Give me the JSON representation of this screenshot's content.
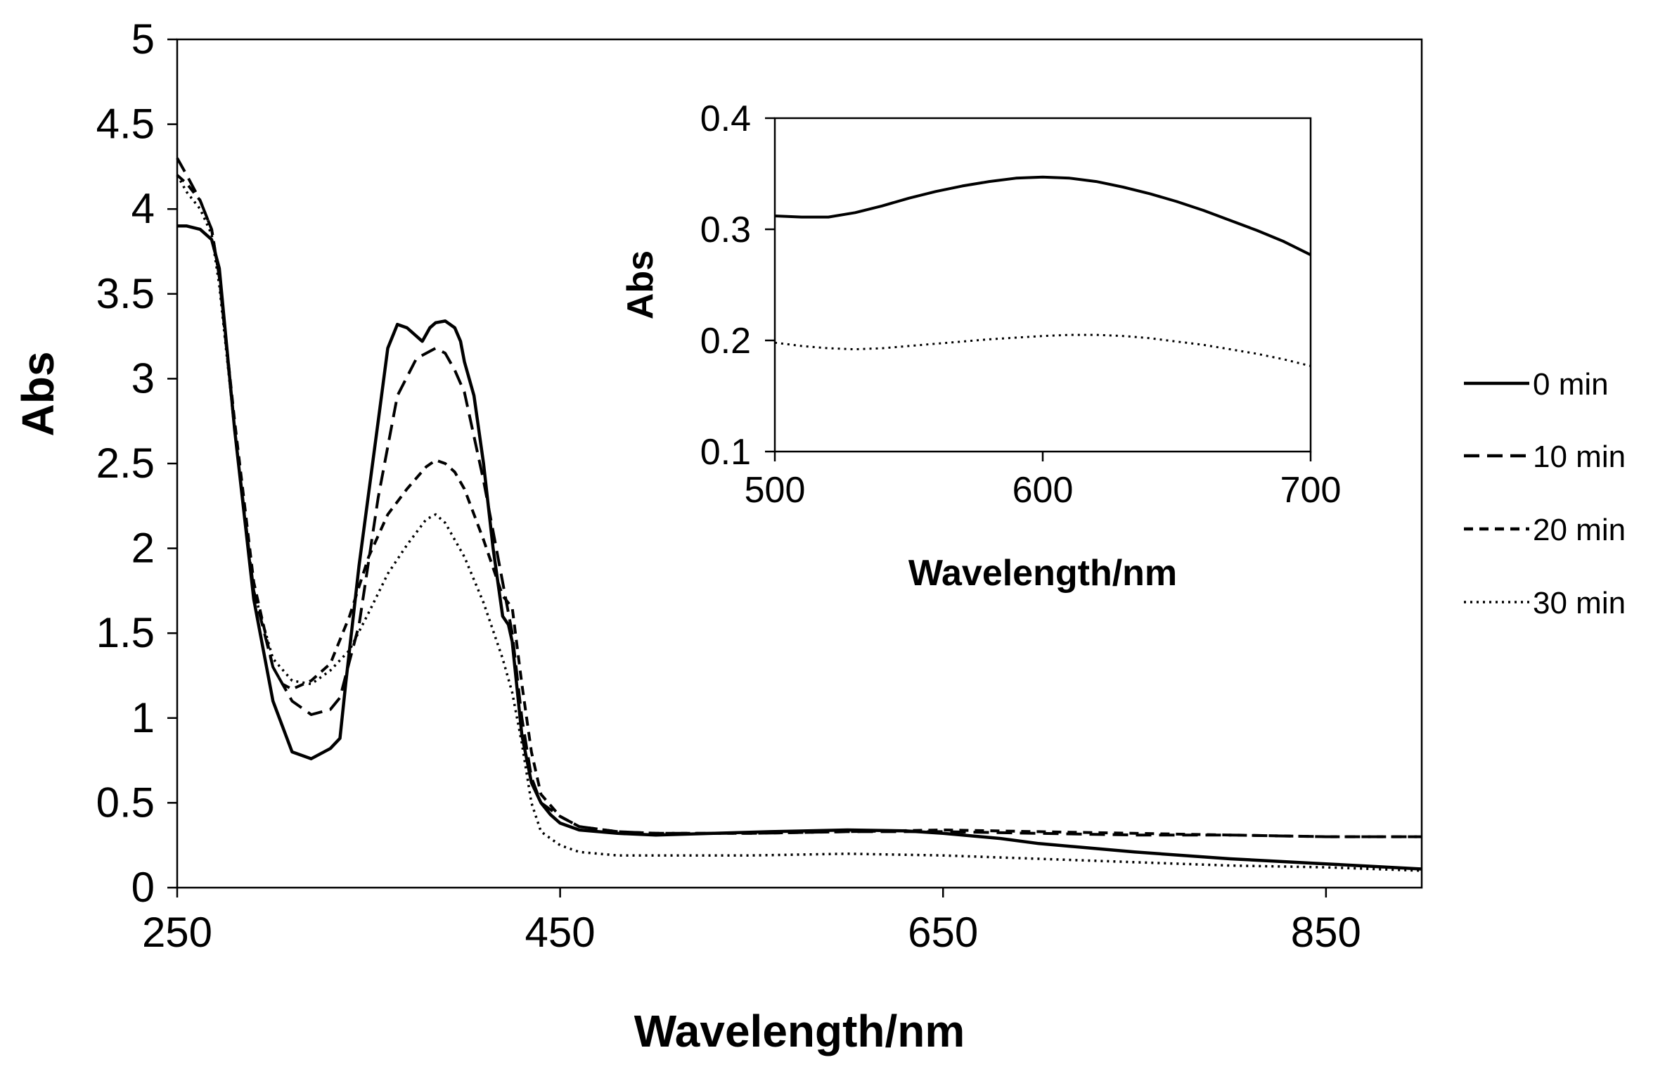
{
  "chart_data": [
    {
      "id": "main",
      "type": "line",
      "title": "",
      "xlabel": "Wavelength/nm",
      "ylabel": "Abs",
      "xlim": [
        250,
        900
      ],
      "ylim": [
        0,
        5
      ],
      "xticks": [
        250,
        450,
        650,
        850
      ],
      "yticks": [
        0,
        0.5,
        1,
        1.5,
        2,
        2.5,
        3,
        3.5,
        4,
        4.5,
        5
      ],
      "grid": false,
      "legend_position": "right",
      "series": [
        {
          "name": "0 min",
          "style": "solid",
          "x": [
            250,
            255,
            262,
            268,
            272,
            280,
            290,
            300,
            310,
            320,
            330,
            335,
            338,
            345,
            355,
            360,
            365,
            370,
            378,
            382,
            385,
            390,
            395,
            398,
            400,
            405,
            410,
            415,
            420,
            423,
            425,
            430,
            435,
            440,
            445,
            450,
            460,
            480,
            500,
            530,
            560,
            600,
            630,
            650,
            680,
            700,
            750,
            800,
            850,
            900
          ],
          "y": [
            3.9,
            3.9,
            3.88,
            3.82,
            3.65,
            2.7,
            1.7,
            1.1,
            0.8,
            0.76,
            0.82,
            0.88,
            1.2,
            1.9,
            2.75,
            3.18,
            3.32,
            3.3,
            3.22,
            3.3,
            3.33,
            3.34,
            3.3,
            3.22,
            3.1,
            2.9,
            2.5,
            2.0,
            1.6,
            1.55,
            1.45,
            0.9,
            0.62,
            0.5,
            0.43,
            0.38,
            0.34,
            0.32,
            0.31,
            0.32,
            0.33,
            0.34,
            0.335,
            0.32,
            0.29,
            0.26,
            0.21,
            0.17,
            0.14,
            0.11
          ]
        },
        {
          "name": "10 min",
          "style": "dashed",
          "x": [
            250,
            255,
            262,
            268,
            272,
            280,
            290,
            300,
            310,
            320,
            330,
            335,
            345,
            355,
            365,
            375,
            385,
            390,
            395,
            400,
            410,
            420,
            425,
            430,
            435,
            440,
            450,
            460,
            480,
            500,
            550,
            600,
            650,
            700,
            750,
            800,
            850,
            900
          ],
          "y": [
            4.3,
            4.2,
            4.05,
            3.88,
            3.6,
            2.7,
            1.75,
            1.3,
            1.1,
            1.02,
            1.05,
            1.12,
            1.55,
            2.3,
            2.9,
            3.12,
            3.18,
            3.15,
            3.05,
            2.92,
            2.4,
            1.8,
            1.5,
            1.0,
            0.65,
            0.5,
            0.42,
            0.36,
            0.33,
            0.32,
            0.32,
            0.33,
            0.33,
            0.32,
            0.31,
            0.31,
            0.3,
            0.3
          ]
        },
        {
          "name": "20 min",
          "style": "dashed",
          "x": [
            250,
            255,
            262,
            268,
            272,
            280,
            290,
            300,
            305,
            310,
            320,
            330,
            340,
            350,
            360,
            370,
            380,
            385,
            390,
            395,
            400,
            410,
            420,
            425,
            430,
            435,
            440,
            450,
            460,
            480,
            500,
            550,
            600,
            650,
            700,
            750,
            800,
            850,
            900
          ],
          "y": [
            4.2,
            4.15,
            4.05,
            3.88,
            3.6,
            2.75,
            1.8,
            1.3,
            1.2,
            1.17,
            1.22,
            1.32,
            1.6,
            1.95,
            2.2,
            2.35,
            2.48,
            2.52,
            2.5,
            2.45,
            2.35,
            2.05,
            1.72,
            1.65,
            1.2,
            0.8,
            0.55,
            0.42,
            0.36,
            0.33,
            0.32,
            0.32,
            0.33,
            0.34,
            0.33,
            0.32,
            0.31,
            0.3,
            0.3
          ]
        },
        {
          "name": "30 min",
          "style": "dotted",
          "x": [
            250,
            255,
            262,
            268,
            272,
            280,
            290,
            300,
            310,
            320,
            330,
            340,
            350,
            360,
            370,
            380,
            385,
            390,
            395,
            400,
            410,
            420,
            425,
            430,
            435,
            440,
            450,
            460,
            480,
            500,
            550,
            600,
            650,
            700,
            750,
            800,
            850,
            900
          ],
          "y": [
            4.2,
            4.1,
            4.0,
            3.85,
            3.55,
            2.7,
            1.75,
            1.35,
            1.22,
            1.2,
            1.28,
            1.4,
            1.62,
            1.85,
            2.02,
            2.17,
            2.2,
            2.15,
            2.05,
            1.95,
            1.68,
            1.35,
            1.15,
            0.85,
            0.5,
            0.33,
            0.25,
            0.21,
            0.19,
            0.19,
            0.19,
            0.2,
            0.19,
            0.17,
            0.15,
            0.13,
            0.12,
            0.1
          ]
        }
      ]
    },
    {
      "id": "inset",
      "type": "line",
      "title": "",
      "xlabel": "Wavelength/nm",
      "ylabel": "Abs",
      "xlim": [
        500,
        700
      ],
      "ylim": [
        0.1,
        0.4
      ],
      "xticks": [
        500,
        600,
        700
      ],
      "yticks": [
        0.1,
        0.2,
        0.3,
        0.4
      ],
      "grid": false,
      "series": [
        {
          "name": "0 min",
          "style": "solid",
          "x": [
            500,
            510,
            520,
            530,
            540,
            550,
            560,
            570,
            580,
            590,
            600,
            610,
            620,
            630,
            640,
            650,
            660,
            670,
            680,
            690,
            700
          ],
          "y": [
            0.312,
            0.311,
            0.311,
            0.315,
            0.321,
            0.328,
            0.334,
            0.339,
            0.343,
            0.346,
            0.347,
            0.346,
            0.343,
            0.338,
            0.332,
            0.325,
            0.317,
            0.308,
            0.299,
            0.289,
            0.277
          ]
        },
        {
          "name": "30 min",
          "style": "dotted",
          "x": [
            500,
            510,
            520,
            530,
            540,
            550,
            560,
            580,
            600,
            610,
            620,
            630,
            640,
            650,
            660,
            670,
            680,
            690,
            700
          ],
          "y": [
            0.198,
            0.195,
            0.193,
            0.192,
            0.193,
            0.195,
            0.197,
            0.201,
            0.204,
            0.205,
            0.205,
            0.204,
            0.202,
            0.199,
            0.196,
            0.192,
            0.188,
            0.183,
            0.177
          ]
        }
      ]
    }
  ],
  "legend": {
    "entries": [
      {
        "label": "0 min",
        "style": "solid"
      },
      {
        "label": "10 min",
        "style": "dashed"
      },
      {
        "label": "20 min",
        "style": "dashed"
      },
      {
        "label": "30 min",
        "style": "dotted"
      }
    ]
  }
}
